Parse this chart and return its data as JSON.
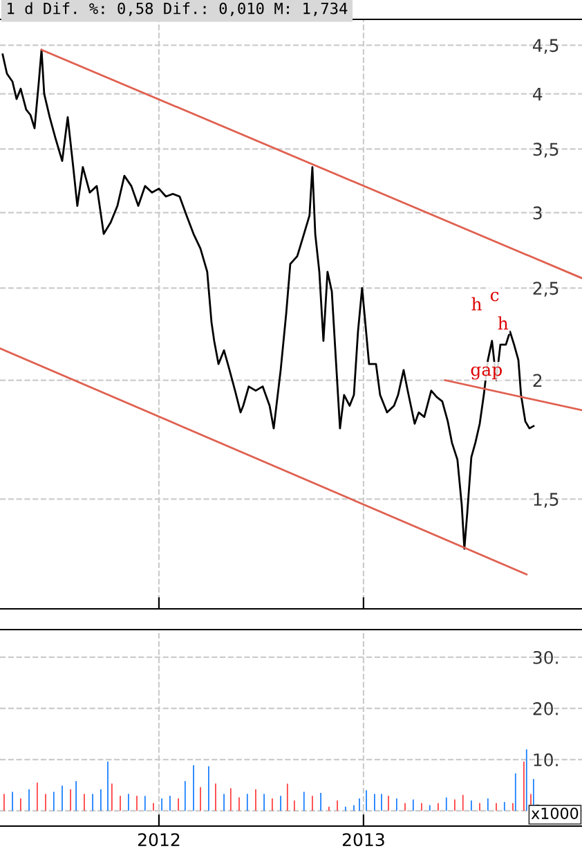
{
  "chart_data": [
    {
      "type": "line",
      "title": "1 d Dif. %: 0,58 Dif.: 0,010 M: 1,734",
      "log": "y",
      "grid": true,
      "tick_labels": "y",
      "xlim": [
        2011.223,
        2014.068
      ],
      "xticks": [
        2012,
        2013
      ],
      "ylim": [
        1.15,
        4.79
      ],
      "yticks": [
        {
          "value": 1.5,
          "label": "1,5"
        },
        2,
        {
          "value": 2.5,
          "label": "2,5"
        },
        3,
        {
          "value": 3.5,
          "label": "3,5"
        },
        4,
        {
          "value": 4.5,
          "label": "4,5"
        }
      ],
      "annotations": [
        {
          "text": "h",
          "x": 2013.628,
          "y": 2.2
        },
        {
          "text": "c",
          "x": 2013.716,
          "y": 2.25
        },
        {
          "text": "h",
          "x": 2013.757,
          "y": 2.1
        },
        {
          "text": "gap",
          "x": 2013.77,
          "y": 1.93
        }
      ],
      "series": [
        {
          "type": "line",
          "color": "#000000",
          "x": [
            2011.236,
            2011.257,
            2011.284,
            2011.304,
            2011.324,
            2011.351,
            2011.372,
            2011.392,
            2011.412,
            2011.426,
            2011.439,
            2011.466,
            2011.493,
            2011.527,
            2011.554,
            2011.581,
            2011.601,
            2011.628,
            2011.662,
            2011.696,
            2011.73,
            2011.764,
            2011.797,
            2011.831,
            2011.865,
            2011.899,
            2011.932,
            2011.966,
            2012.0,
            2012.034,
            2012.068,
            2012.101,
            2012.135,
            2012.169,
            2012.203,
            2012.236,
            2012.257,
            2012.27,
            2012.291,
            2012.318,
            2012.345,
            2012.372,
            2012.399,
            2012.412,
            2012.439,
            2012.473,
            2012.507,
            2012.541,
            2012.561,
            2012.595,
            2012.622,
            2012.642,
            2012.676,
            2012.709,
            2012.736,
            2012.75,
            2012.764,
            2012.784,
            2012.804,
            2012.824,
            2012.845,
            2012.865,
            2012.885,
            2012.905,
            2012.932,
            2012.953,
            2012.973,
            2012.993,
            2013.007,
            2013.027,
            2013.061,
            2013.081,
            2013.115,
            2013.149,
            2013.169,
            2013.196,
            2013.216,
            2013.25,
            2013.27,
            2013.297,
            2013.331,
            2013.358,
            2013.385,
            2013.412,
            2013.432,
            2013.459,
            2013.48,
            2013.493,
            2013.507,
            2013.527,
            2013.547,
            2013.568,
            2013.588,
            2013.608,
            2013.628,
            2013.649,
            2013.669,
            2013.696,
            2013.716,
            2013.736,
            2013.757,
            2013.77,
            2013.791,
            2013.811,
            2013.831
          ],
          "values": [
            4.4,
            4.2,
            4.12,
            3.95,
            4.05,
            3.85,
            3.8,
            3.68,
            4.1,
            4.45,
            4.0,
            3.78,
            3.6,
            3.4,
            3.78,
            3.35,
            3.05,
            3.35,
            3.15,
            3.2,
            2.85,
            2.93,
            3.05,
            3.28,
            3.2,
            3.05,
            3.2,
            3.15,
            3.18,
            3.12,
            3.14,
            3.12,
            2.98,
            2.85,
            2.75,
            2.6,
            2.3,
            2.2,
            2.08,
            2.15,
            2.05,
            1.95,
            1.85,
            1.88,
            1.97,
            1.95,
            1.97,
            1.88,
            1.78,
            2.05,
            2.35,
            2.65,
            2.7,
            2.85,
            2.98,
            3.35,
            2.85,
            2.6,
            2.2,
            2.6,
            2.48,
            2.1,
            1.78,
            1.93,
            1.88,
            1.93,
            2.25,
            2.5,
            2.32,
            2.08,
            2.08,
            1.93,
            1.85,
            1.88,
            1.93,
            2.05,
            1.95,
            1.8,
            1.85,
            1.83,
            1.95,
            1.92,
            1.9,
            1.81,
            1.72,
            1.65,
            1.48,
            1.33,
            1.45,
            1.66,
            1.72,
            1.8,
            1.93,
            2.1,
            2.2,
            2.0,
            2.18,
            2.18,
            2.25,
            2.18,
            2.1,
            1.93,
            1.81,
            1.78,
            1.79
          ]
        },
        {
          "type": "line",
          "color": "#e06050",
          "x": [
            2011.426,
            2014.068
          ],
          "values": [
            4.45,
            2.56
          ]
        },
        {
          "type": "line",
          "color": "#e06050",
          "x": [
            2011.223,
            2013.797
          ],
          "values": [
            2.16,
            1.25
          ]
        },
        {
          "type": "line",
          "color": "#e06050",
          "x": [
            2013.399,
            2014.068
          ],
          "values": [
            2.0,
            1.86
          ]
        }
      ]
    },
    {
      "type": "bar",
      "grid": true,
      "xlim": [
        2011.223,
        2014.068
      ],
      "xticks": [
        2012,
        2013
      ],
      "ylim": [
        -3,
        35.4
      ],
      "yticks": [
        0,
        {
          "value": 10,
          "label": "10."
        },
        {
          "value": 20,
          "label": "20."
        },
        {
          "value": 30,
          "label": "30."
        }
      ],
      "annotations": [
        "x1000"
      ],
      "x": [
        2011.243,
        2011.284,
        2011.324,
        2011.365,
        2011.405,
        2011.446,
        2011.486,
        2011.527,
        2011.568,
        2011.595,
        2011.635,
        2011.676,
        2011.716,
        2011.75,
        2011.77,
        2011.811,
        2011.851,
        2011.892,
        2011.932,
        2011.973,
        2012.014,
        2012.054,
        2012.095,
        2012.128,
        2012.169,
        2012.203,
        2012.243,
        2012.277,
        2012.318,
        2012.351,
        2012.392,
        2012.432,
        2012.473,
        2012.514,
        2012.554,
        2012.595,
        2012.628,
        2012.662,
        2012.709,
        2012.75,
        2012.791,
        2012.831,
        2012.872,
        2012.912,
        2012.953,
        2012.98,
        2013.014,
        2013.054,
        2013.088,
        2013.122,
        2013.162,
        2013.203,
        2013.243,
        2013.284,
        2013.324,
        2013.365,
        2013.405,
        2013.446,
        2013.486,
        2013.527,
        2013.568,
        2013.608,
        2013.649,
        2013.689,
        2013.73,
        2013.743,
        2013.784,
        2013.797,
        2013.818,
        2013.831
      ],
      "values": [
        3.3,
        3.7,
        2.4,
        4.2,
        5.5,
        3.3,
        3.7,
        4.9,
        4.2,
        5.8,
        3.3,
        3.3,
        4.2,
        9.6,
        5.3,
        2.9,
        3.3,
        2.9,
        2.9,
        1.5,
        2.4,
        2.9,
        2.4,
        5.8,
        8.9,
        4.6,
        8.7,
        5.3,
        3.3,
        4.4,
        2.6,
        3.3,
        4.2,
        3.3,
        2.4,
        2.9,
        5.3,
        2.0,
        3.7,
        2.9,
        3.5,
        0.8,
        2.0,
        0.8,
        1.1,
        2.4,
        4.0,
        3.3,
        3.3,
        2.9,
        2.4,
        1.5,
        2.2,
        1.5,
        1.1,
        1.5,
        2.6,
        2.2,
        3.1,
        2.0,
        1.5,
        2.4,
        1.5,
        1.7,
        1.5,
        7.3,
        9.6,
        12.0,
        3.3,
        6.2
      ],
      "colors": [
        "#ff4040",
        "#1a7fff",
        "#ff4040",
        "#1a7fff",
        "#ff4040",
        "#ff4040",
        "#1a7fff",
        "#1a7fff",
        "#ff4040",
        "#1a7fff",
        "#ff4040",
        "#1a7fff",
        "#1a7fff",
        "#1a7fff",
        "#ff4040",
        "#ff4040",
        "#1a7fff",
        "#ff4040",
        "#1a7fff",
        "#ff4040",
        "#1a7fff",
        "#1a7fff",
        "#ff4040",
        "#1a7fff",
        "#1a7fff",
        "#ff4040",
        "#1a7fff",
        "#ff4040",
        "#1a7fff",
        "#ff4040",
        "#ff4040",
        "#1a7fff",
        "#ff4040",
        "#1a7fff",
        "#ff4040",
        "#1a7fff",
        "#ff4040",
        "#ff4040",
        "#1a7fff",
        "#ff4040",
        "#1a7fff",
        "#ff4040",
        "#ff4040",
        "#1a7fff",
        "#1a7fff",
        "#1a7fff",
        "#1a7fff",
        "#1a7fff",
        "#1a7fff",
        "#ff4040",
        "#1a7fff",
        "#ff4040",
        "#1a7fff",
        "#ff4040",
        "#1a7fff",
        "#ff4040",
        "#1a7fff",
        "#ff4040",
        "#ff4040",
        "#1a7fff",
        "#ff4040",
        "#1a7fff",
        "#ff4040",
        "#1a7fff",
        "#ff4040",
        "#1a7fff",
        "#ff4040",
        "#1a7fff",
        "#ff4040",
        "#1a7fff"
      ]
    }
  ]
}
